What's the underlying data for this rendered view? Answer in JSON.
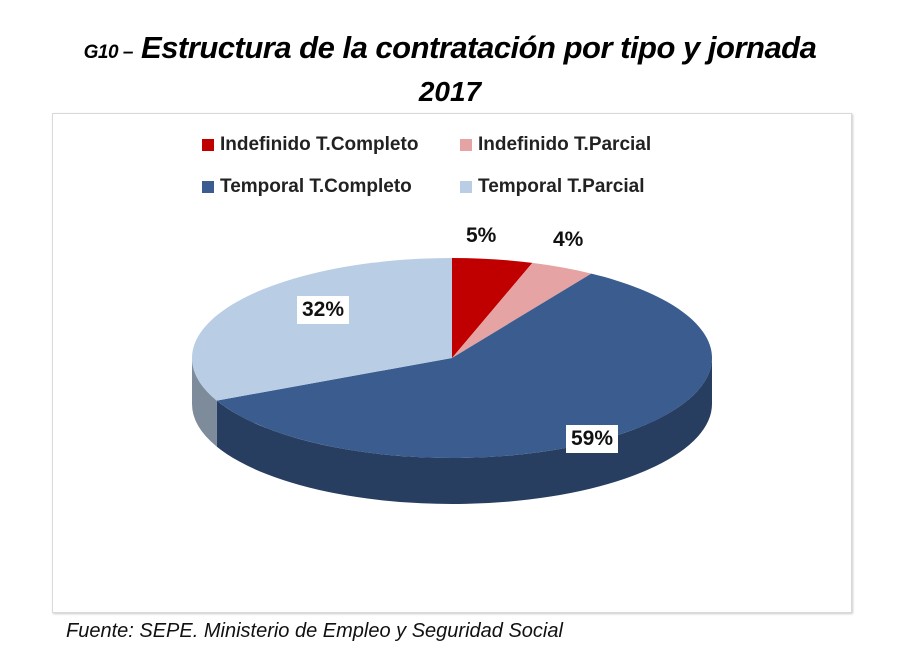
{
  "title_prefix": "G10 –",
  "title": "Estructura de la contratación por tipo y jornada",
  "subtitle": "2017",
  "source": "Fuente: SEPE. Ministerio de Empleo y Seguridad Social",
  "chart_data": {
    "type": "pie",
    "title": "Estructura de la contratación por tipo y jornada 2017",
    "style": "3d",
    "legend_position": "top",
    "categories": [
      "Indefinido T.Completo",
      "Indefinido T.Parcial",
      "Temporal T.Completo",
      "Temporal T.Parcial"
    ],
    "values": [
      5,
      4,
      59,
      32
    ],
    "labels": [
      "5%",
      "4%",
      "59%",
      "32%"
    ],
    "colors": [
      "#C00000",
      "#E6A3A3",
      "#3B5C8E",
      "#B9CDE5"
    ]
  }
}
